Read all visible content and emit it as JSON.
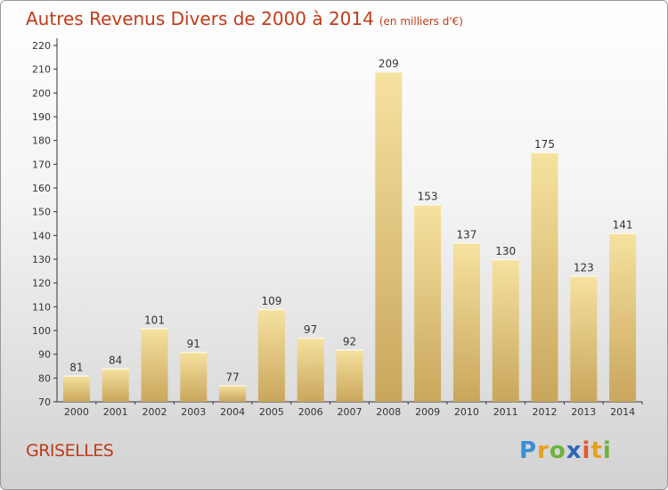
{
  "chart_title": "Autres Revenus Divers de 2000 à 2014",
  "chart_unit": "(en milliers d'€)",
  "place_name": "GRISELLES",
  "logo_text": "Proxiti",
  "colors": {
    "title": "#c23a18",
    "bar_light": "#f6e2a0",
    "bar_dark": "#c9a65c"
  },
  "chart_data": {
    "type": "bar",
    "title": "Autres Revenus Divers de 2000 à 2014",
    "ylabel": "",
    "xlabel": "",
    "ylim": [
      70,
      220
    ],
    "yticks": [
      70,
      80,
      90,
      100,
      110,
      120,
      130,
      140,
      150,
      160,
      170,
      180,
      190,
      200,
      210,
      220
    ],
    "grid": false,
    "categories": [
      "2000",
      "2001",
      "2002",
      "2003",
      "2004",
      "2005",
      "2006",
      "2007",
      "2008",
      "2009",
      "2010",
      "2011",
      "2012",
      "2013",
      "2014"
    ],
    "values": [
      81,
      84,
      101,
      91,
      77,
      109,
      97,
      92,
      209,
      153,
      137,
      130,
      175,
      123,
      141
    ]
  }
}
